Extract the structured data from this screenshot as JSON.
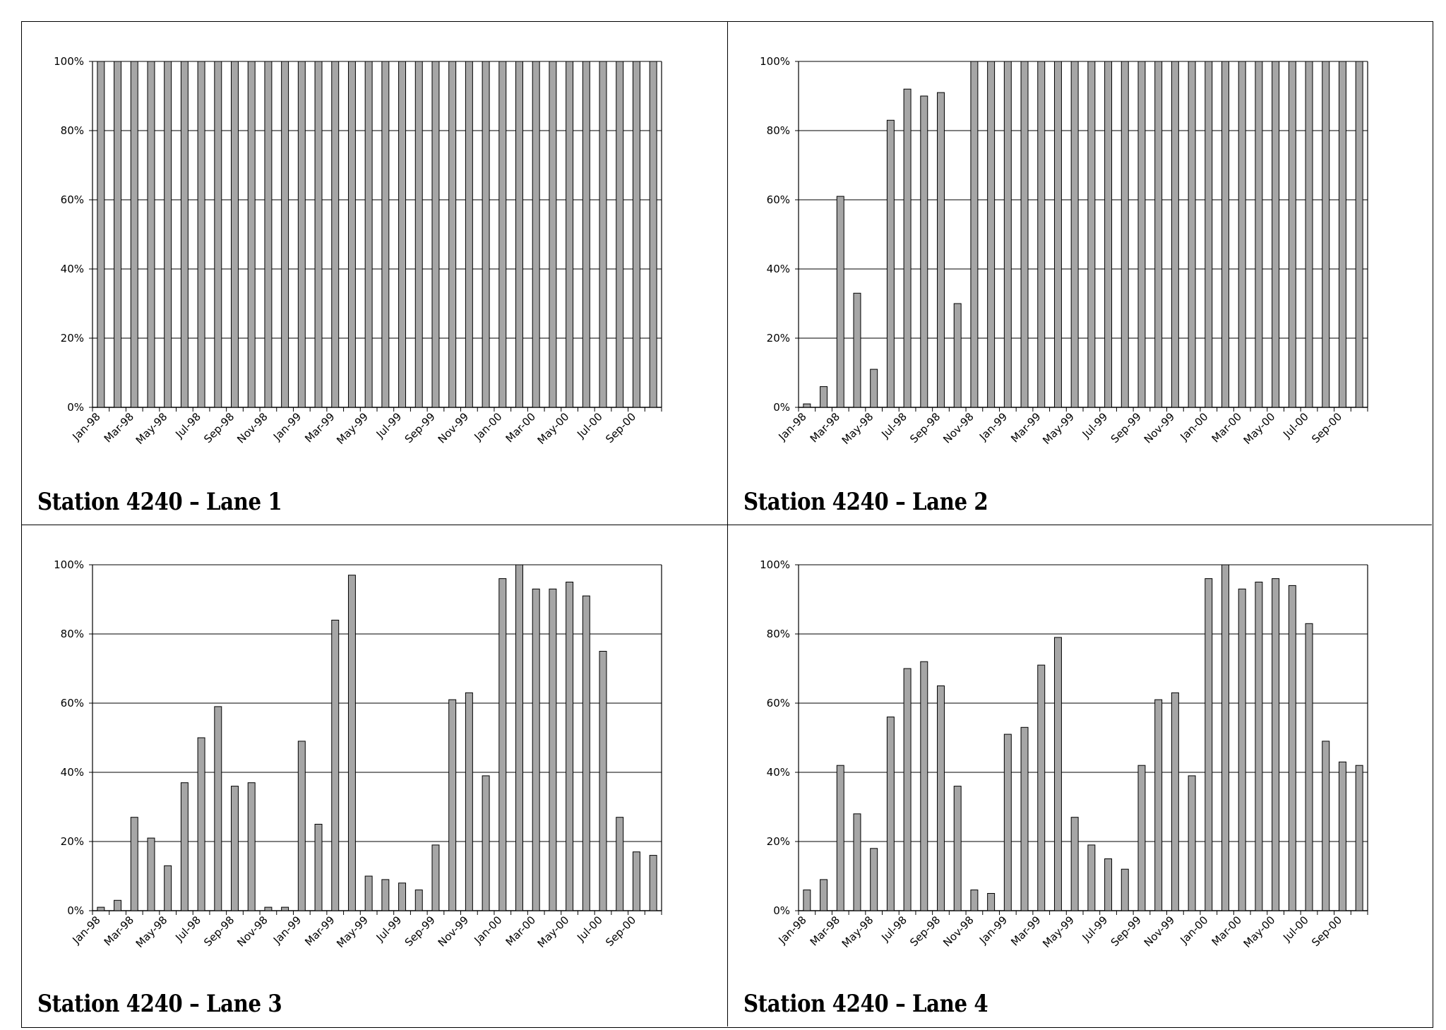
{
  "colors": {
    "bar_fill": "#a6a6a6",
    "bar_stroke": "#000000",
    "grid": "#000000",
    "background": "#ffffff"
  },
  "panels": [
    {
      "title": "Station 4240 – Lane 1"
    },
    {
      "title": "Station 4240 – Lane 2"
    },
    {
      "title": "Station 4240 – Lane 3"
    },
    {
      "title": "Station 4240 – Lane 4"
    }
  ],
  "chart_data": [
    {
      "type": "bar",
      "title": "Station 4240 – Lane 1",
      "xlabel": "",
      "ylabel": "",
      "ylim": [
        0,
        100
      ],
      "yticks": [
        "0%",
        "20%",
        "40%",
        "60%",
        "80%",
        "100%"
      ],
      "grid": true,
      "categories": [
        "Jan-98",
        "Feb-98",
        "Mar-98",
        "Apr-98",
        "May-98",
        "Jun-98",
        "Jul-98",
        "Aug-98",
        "Sep-98",
        "Oct-98",
        "Nov-98",
        "Dec-98",
        "Jan-99",
        "Feb-99",
        "Mar-99",
        "Apr-99",
        "May-99",
        "Jun-99",
        "Jul-99",
        "Aug-99",
        "Sep-99",
        "Oct-99",
        "Nov-99",
        "Dec-99",
        "Jan-00",
        "Feb-00",
        "Mar-00",
        "Apr-00",
        "May-00",
        "Jun-00",
        "Jul-00",
        "Aug-00",
        "Sep-00",
        "Oct-00"
      ],
      "xticklabels": [
        "Jan-98",
        "Mar-98",
        "May-98",
        "Jul-98",
        "Sep-98",
        "Nov-98",
        "Jan-99",
        "Mar-99",
        "May-99",
        "Jul-99",
        "Sep-99",
        "Nov-99",
        "Jan-00",
        "Mar-00",
        "May-00",
        "Jul-00",
        "Sep-00"
      ],
      "values": [
        100,
        100,
        100,
        100,
        100,
        100,
        100,
        100,
        100,
        100,
        100,
        100,
        100,
        100,
        100,
        100,
        100,
        100,
        100,
        100,
        100,
        100,
        100,
        100,
        100,
        100,
        100,
        100,
        100,
        100,
        100,
        100,
        100,
        100
      ]
    },
    {
      "type": "bar",
      "title": "Station 4240 – Lane 2",
      "xlabel": "",
      "ylabel": "",
      "ylim": [
        0,
        100
      ],
      "yticks": [
        "0%",
        "20%",
        "40%",
        "60%",
        "80%",
        "100%"
      ],
      "grid": true,
      "categories": [
        "Jan-98",
        "Feb-98",
        "Mar-98",
        "Apr-98",
        "May-98",
        "Jun-98",
        "Jul-98",
        "Aug-98",
        "Sep-98",
        "Oct-98",
        "Nov-98",
        "Dec-98",
        "Jan-99",
        "Feb-99",
        "Mar-99",
        "Apr-99",
        "May-99",
        "Jun-99",
        "Jul-99",
        "Aug-99",
        "Sep-99",
        "Oct-99",
        "Nov-99",
        "Dec-99",
        "Jan-00",
        "Feb-00",
        "Mar-00",
        "Apr-00",
        "May-00",
        "Jun-00",
        "Jul-00",
        "Aug-00",
        "Sep-00",
        "Oct-00"
      ],
      "xticklabels": [
        "Jan-98",
        "Mar-98",
        "May-98",
        "Jul-98",
        "Sep-98",
        "Nov-98",
        "Jan-99",
        "Mar-99",
        "May-99",
        "Jul-99",
        "Sep-99",
        "Nov-99",
        "Jan-00",
        "Mar-00",
        "May-00",
        "Jul-00",
        "Sep-00"
      ],
      "values": [
        1,
        6,
        61,
        33,
        11,
        83,
        92,
        90,
        91,
        30,
        100,
        100,
        100,
        100,
        100,
        100,
        100,
        100,
        100,
        100,
        100,
        100,
        100,
        100,
        100,
        100,
        100,
        100,
        100,
        100,
        100,
        100,
        100,
        100
      ]
    },
    {
      "type": "bar",
      "title": "Station 4240 – Lane 3",
      "xlabel": "",
      "ylabel": "",
      "ylim": [
        0,
        100
      ],
      "yticks": [
        "0%",
        "20%",
        "40%",
        "60%",
        "80%",
        "100%"
      ],
      "grid": true,
      "categories": [
        "Jan-98",
        "Feb-98",
        "Mar-98",
        "Apr-98",
        "May-98",
        "Jun-98",
        "Jul-98",
        "Aug-98",
        "Sep-98",
        "Oct-98",
        "Nov-98",
        "Dec-98",
        "Jan-99",
        "Feb-99",
        "Mar-99",
        "Apr-99",
        "May-99",
        "Jun-99",
        "Jul-99",
        "Aug-99",
        "Sep-99",
        "Oct-99",
        "Nov-99",
        "Dec-99",
        "Jan-00",
        "Feb-00",
        "Mar-00",
        "Apr-00",
        "May-00",
        "Jun-00",
        "Jul-00",
        "Aug-00",
        "Sep-00",
        "Oct-00"
      ],
      "xticklabels": [
        "Jan-98",
        "Mar-98",
        "May-98",
        "Jul-98",
        "Sep-98",
        "Nov-98",
        "Jan-99",
        "Mar-99",
        "May-99",
        "Jul-99",
        "Sep-99",
        "Nov-99",
        "Jan-00",
        "Mar-00",
        "May-00",
        "Jul-00",
        "Sep-00"
      ],
      "values": [
        1,
        3,
        27,
        21,
        13,
        37,
        50,
        59,
        36,
        37,
        1,
        1,
        49,
        25,
        84,
        97,
        10,
        9,
        8,
        6,
        19,
        61,
        63,
        39,
        96,
        100,
        93,
        93,
        95,
        91,
        75,
        27,
        17,
        16
      ]
    },
    {
      "type": "bar",
      "title": "Station 4240 – Lane 4",
      "xlabel": "",
      "ylabel": "",
      "ylim": [
        0,
        100
      ],
      "yticks": [
        "0%",
        "20%",
        "40%",
        "60%",
        "80%",
        "100%"
      ],
      "grid": true,
      "categories": [
        "Jan-98",
        "Feb-98",
        "Mar-98",
        "Apr-98",
        "May-98",
        "Jun-98",
        "Jul-98",
        "Aug-98",
        "Sep-98",
        "Oct-98",
        "Nov-98",
        "Dec-98",
        "Jan-99",
        "Feb-99",
        "Mar-99",
        "Apr-99",
        "May-99",
        "Jun-99",
        "Jul-99",
        "Aug-99",
        "Sep-99",
        "Oct-99",
        "Nov-99",
        "Dec-99",
        "Jan-00",
        "Feb-00",
        "Mar-00",
        "Apr-00",
        "May-00",
        "Jun-00",
        "Jul-00",
        "Aug-00",
        "Sep-00",
        "Oct-00"
      ],
      "xticklabels": [
        "Jan-98",
        "Mar-98",
        "May-98",
        "Jul-98",
        "Sep-98",
        "Nov-98",
        "Jan-99",
        "Mar-99",
        "May-99",
        "Jul-99",
        "Sep-99",
        "Nov-99",
        "Jan-00",
        "Mar-00",
        "May-00",
        "Jul-00",
        "Sep-00"
      ],
      "values": [
        6,
        9,
        42,
        28,
        18,
        56,
        70,
        72,
        65,
        36,
        6,
        5,
        51,
        53,
        71,
        79,
        27,
        19,
        15,
        12,
        42,
        61,
        63,
        39,
        96,
        100,
        93,
        95,
        96,
        94,
        83,
        49,
        43,
        42
      ]
    }
  ]
}
